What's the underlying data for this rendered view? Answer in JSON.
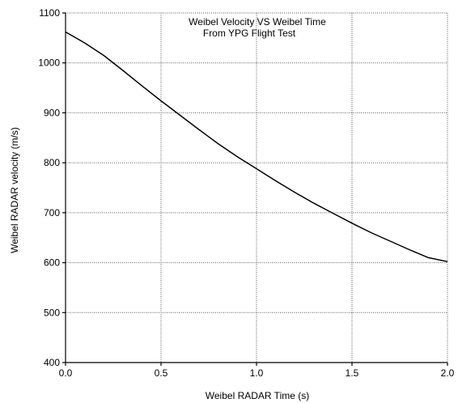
{
  "chart_data": {
    "type": "line",
    "title": "Weibel Velocity VS Weibel Time",
    "subtitle": "From YPG Flight Test",
    "xlabel": "Weibel RADAR Time (s)",
    "ylabel": "Weibel RADAR velocity (m/s)",
    "xlim": [
      0,
      2
    ],
    "ylim": [
      400,
      1100
    ],
    "x_ticks": [
      0,
      0.5,
      1,
      1.5,
      2
    ],
    "x_tick_labels": [
      "0.0",
      "0.5",
      "1.0",
      "1.5",
      "2.0"
    ],
    "y_ticks": [
      400,
      500,
      600,
      700,
      800,
      900,
      1000,
      1100
    ],
    "y_tick_labels": [
      "400",
      "500",
      "600",
      "700",
      "800",
      "900",
      "1000",
      "1100"
    ],
    "grid": true,
    "series": [
      {
        "x": [
          0,
          0.1,
          0.2,
          0.3,
          0.4,
          0.5,
          0.6,
          0.7,
          0.8,
          0.9,
          1.0,
          1.1,
          1.2,
          1.3,
          1.4,
          1.5,
          1.6,
          1.7,
          1.8,
          1.9,
          2.0
        ],
        "y": [
          1062,
          1040,
          1015,
          985,
          954,
          924,
          895,
          866,
          838,
          812,
          788,
          764,
          741,
          719,
          699,
          679,
          660,
          643,
          626,
          610,
          602
        ]
      }
    ]
  }
}
